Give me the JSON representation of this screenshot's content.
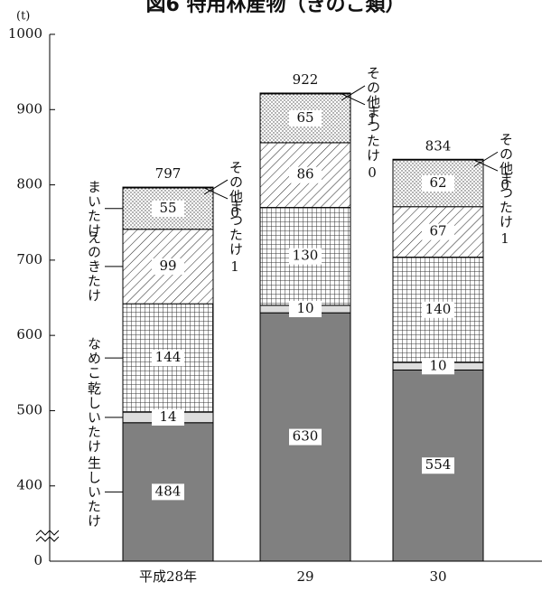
{
  "chart_data": {
    "type": "stacked_bar",
    "title": "図6 特用林産物（きのこ類）",
    "y_unit": "(t)",
    "categories": [
      "平成28年",
      "29",
      "30"
    ],
    "ylim": [
      0,
      1000
    ],
    "yticks": [
      0,
      400,
      500,
      600,
      700,
      800,
      900,
      1000
    ],
    "axis_break": true,
    "totals": [
      797,
      922,
      834
    ],
    "series": [
      {
        "name": "生しいたけ",
        "color": "#808080",
        "values": [
          484,
          630,
          554
        ]
      },
      {
        "name": "乾しいたけ",
        "color": "#dddddd",
        "values": [
          14,
          10,
          10
        ]
      },
      {
        "name": "なめこ",
        "color": "grid",
        "values": [
          144,
          130,
          140
        ]
      },
      {
        "name": "えのきたけ",
        "color": "hatch",
        "values": [
          99,
          86,
          67
        ]
      },
      {
        "name": "まいたけ",
        "color": "dots",
        "values": [
          55,
          65,
          62
        ]
      },
      {
        "name": "まつたけ",
        "color": "#ffffff",
        "values": [
          1,
          0,
          1
        ]
      },
      {
        "name": "その他",
        "color": "#ffffff",
        "values": [
          0,
          1,
          0
        ]
      }
    ]
  }
}
